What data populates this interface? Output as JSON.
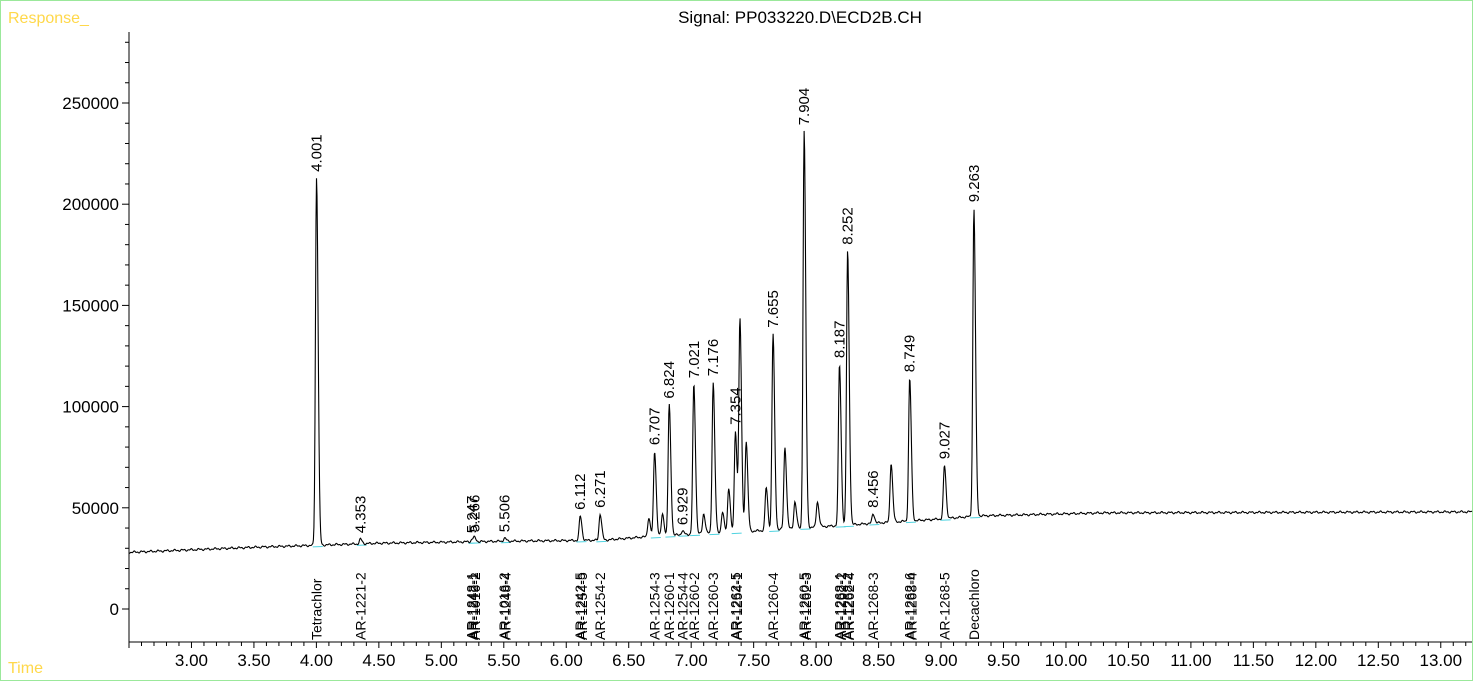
{
  "corner_labels": {
    "y": "Response_",
    "x": "Time"
  },
  "chart_data": {
    "type": "line",
    "title": "Signal: PP033220.D\\ECD2B.CH",
    "xlabel": "Time",
    "ylabel": "Response_",
    "xlim": [
      2.5,
      13.25
    ],
    "ylim": [
      -10000,
      285000
    ],
    "x_ticks": [
      "3.00",
      "3.50",
      "4.00",
      "4.50",
      "5.00",
      "5.50",
      "6.00",
      "6.50",
      "7.00",
      "7.50",
      "8.00",
      "8.50",
      "9.00",
      "9.50",
      "10.00",
      "10.50",
      "11.00",
      "11.50",
      "12.00",
      "12.50",
      "13.00"
    ],
    "y_ticks": [
      "0",
      "50000",
      "100000",
      "150000",
      "200000",
      "250000"
    ],
    "grid": false,
    "line_color": "#000000",
    "baseline_color": "#4fd3e0",
    "baseline": [
      [
        2.5,
        28000
      ],
      [
        3.5,
        30500
      ],
      [
        4.5,
        32500
      ],
      [
        5.5,
        33500
      ],
      [
        6.3,
        34000
      ],
      [
        6.6,
        35500
      ],
      [
        7.0,
        37000
      ],
      [
        7.5,
        38500
      ],
      [
        8.0,
        40500
      ],
      [
        8.5,
        42500
      ],
      [
        9.0,
        44500
      ],
      [
        9.3,
        46000
      ],
      [
        10.3,
        47500
      ],
      [
        13.25,
        48000
      ]
    ],
    "peaks": [
      {
        "rt": 4.001,
        "height": 213000,
        "label": "4.001"
      },
      {
        "rt": 4.353,
        "height": 34500,
        "label": "4.353"
      },
      {
        "rt": 5.247,
        "height": 34500,
        "label": "5.247"
      },
      {
        "rt": 5.266,
        "height": 35000,
        "label": "5.266"
      },
      {
        "rt": 5.506,
        "height": 35000,
        "label": "5.506"
      },
      {
        "rt": 6.112,
        "height": 46000,
        "label": "6.112"
      },
      {
        "rt": 6.271,
        "height": 47000,
        "label": "6.271"
      },
      {
        "rt": 6.66,
        "height": 45000
      },
      {
        "rt": 6.707,
        "height": 78000,
        "label": "6.707"
      },
      {
        "rt": 6.77,
        "height": 47000
      },
      {
        "rt": 6.824,
        "height": 101000,
        "label": "6.824"
      },
      {
        "rt": 6.929,
        "height": 38500,
        "label": "6.929"
      },
      {
        "rt": 7.021,
        "height": 111000,
        "label": "7.021"
      },
      {
        "rt": 7.1,
        "height": 47000
      },
      {
        "rt": 7.176,
        "height": 112000,
        "label": "7.176"
      },
      {
        "rt": 7.25,
        "height": 48000
      },
      {
        "rt": 7.3,
        "height": 60000
      },
      {
        "rt": 7.354,
        "height": 88000,
        "label": "7.354"
      },
      {
        "rt": 7.39,
        "height": 143000
      },
      {
        "rt": 7.44,
        "height": 83000
      },
      {
        "rt": 7.6,
        "height": 60000
      },
      {
        "rt": 7.655,
        "height": 136000,
        "label": "7.655"
      },
      {
        "rt": 7.75,
        "height": 80000
      },
      {
        "rt": 7.83,
        "height": 53000
      },
      {
        "rt": 7.904,
        "height": 236000,
        "label": "7.904"
      },
      {
        "rt": 8.01,
        "height": 53000
      },
      {
        "rt": 8.187,
        "height": 121000,
        "label": "8.187"
      },
      {
        "rt": 8.252,
        "height": 177000,
        "label": "8.252"
      },
      {
        "rt": 8.456,
        "height": 47000,
        "label": "8.456"
      },
      {
        "rt": 8.6,
        "height": 72000
      },
      {
        "rt": 8.749,
        "height": 114000,
        "label": "8.749"
      },
      {
        "rt": 9.027,
        "height": 71000,
        "label": "9.027"
      },
      {
        "rt": 9.263,
        "height": 198000,
        "label": "9.263"
      }
    ],
    "compound_labels": [
      {
        "rt": 4.001,
        "name": "Tetrachlor"
      },
      {
        "rt": 4.353,
        "name": "AR-1221-2"
      },
      {
        "rt": 5.24,
        "name": "AR-1248-1"
      },
      {
        "rt": 5.255,
        "name": "AR-1242-1"
      },
      {
        "rt": 5.27,
        "name": "AR-1016-2"
      },
      {
        "rt": 5.5,
        "name": "AR-1016-2"
      },
      {
        "rt": 5.515,
        "name": "AR-1248-4"
      },
      {
        "rt": 6.112,
        "name": "AR-1242-5"
      },
      {
        "rt": 6.125,
        "name": "AR-1254-5"
      },
      {
        "rt": 6.271,
        "name": "AR-1254-2"
      },
      {
        "rt": 6.707,
        "name": "AR-1254-3"
      },
      {
        "rt": 6.824,
        "name": "AR-1260-1"
      },
      {
        "rt": 6.929,
        "name": "AR-1254-4"
      },
      {
        "rt": 7.021,
        "name": "AR-1260-2"
      },
      {
        "rt": 7.176,
        "name": "AR-1260-3"
      },
      {
        "rt": 7.354,
        "name": "AR-1262-5"
      },
      {
        "rt": 7.368,
        "name": "AR-1254-1"
      },
      {
        "rt": 7.655,
        "name": "AR-1260-4"
      },
      {
        "rt": 7.904,
        "name": "AR-1260-5"
      },
      {
        "rt": 7.918,
        "name": "AR-1262-3"
      },
      {
        "rt": 8.187,
        "name": "AR-1268-1"
      },
      {
        "rt": 8.2,
        "name": "AR-1262-2"
      },
      {
        "rt": 8.252,
        "name": "AR-1268-2"
      },
      {
        "rt": 8.265,
        "name": "AR-1262-4"
      },
      {
        "rt": 8.456,
        "name": "AR-1268-3"
      },
      {
        "rt": 8.749,
        "name": "AR-1262-6"
      },
      {
        "rt": 8.762,
        "name": "AR-1268-4"
      },
      {
        "rt": 9.027,
        "name": "AR-1268-5"
      },
      {
        "rt": 9.263,
        "name": "Decachloro"
      }
    ]
  }
}
